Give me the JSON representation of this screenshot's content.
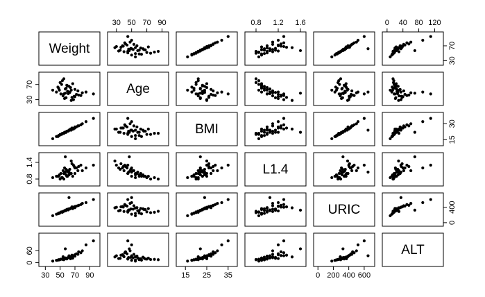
{
  "chart_data": {
    "type": "scatter_matrix",
    "variables": [
      {
        "name": "Weight",
        "lim": [
          25,
          100
        ],
        "xticks": [
          30,
          50,
          70,
          90
        ],
        "yticks": [
          30,
          70
        ]
      },
      {
        "name": "Age",
        "lim": [
          22,
          95
        ],
        "xticks": [
          30,
          50,
          70,
          90
        ],
        "yticks": [
          30,
          70
        ]
      },
      {
        "name": "BMI",
        "lim": [
          12,
          38
        ],
        "xticks": [
          15,
          25,
          35
        ],
        "yticks": [
          15,
          30
        ]
      },
      {
        "name": "L1.4",
        "lim": [
          0.65,
          1.65
        ],
        "xticks": [
          0.8,
          1.2,
          1.6
        ],
        "yticks": [
          0.8,
          1.4
        ]
      },
      {
        "name": "URIC",
        "lim": [
          -20,
          700
        ],
        "xticks": [
          0,
          200,
          400,
          600
        ],
        "yticks": [
          0,
          400
        ]
      },
      {
        "name": "ALT",
        "lim": [
          -5,
          135
        ],
        "xticks": [
          0,
          40,
          80,
          120
        ],
        "yticks": [
          0,
          60
        ]
      }
    ],
    "observations": [
      [
        55,
        45,
        21,
        1.0,
        300,
        20
      ],
      [
        60,
        52,
        23,
        1.1,
        350,
        25
      ],
      [
        48,
        60,
        19,
        0.9,
        250,
        15
      ],
      [
        70,
        38,
        26,
        1.2,
        420,
        40
      ],
      [
        65,
        55,
        24,
        1.0,
        380,
        30
      ],
      [
        52,
        70,
        20,
        0.85,
        280,
        18
      ],
      [
        75,
        42,
        28,
        1.25,
        450,
        55
      ],
      [
        58,
        35,
        22,
        1.15,
        320,
        22
      ],
      [
        62,
        65,
        24,
        0.95,
        360,
        28
      ],
      [
        45,
        50,
        18,
        0.9,
        220,
        12
      ],
      [
        80,
        48,
        30,
        1.1,
        500,
        60
      ],
      [
        68,
        30,
        25,
        1.3,
        400,
        35
      ],
      [
        50,
        75,
        20,
        0.8,
        260,
        16
      ],
      [
        57,
        58,
        22,
        1.05,
        310,
        24
      ],
      [
        72,
        44,
        27,
        1.2,
        430,
        45
      ],
      [
        64,
        62,
        25,
        1.0,
        370,
        20
      ],
      [
        54,
        40,
        21,
        1.1,
        290,
        30
      ],
      [
        59,
        68,
        23,
        0.9,
        340,
        19
      ],
      [
        66,
        36,
        26,
        1.35,
        410,
        38
      ],
      [
        49,
        55,
        19,
        0.95,
        240,
        14
      ],
      [
        85,
        50,
        32,
        1.2,
        520,
        90
      ],
      [
        61,
        46,
        23,
        1.05,
        330,
        26
      ],
      [
        53,
        80,
        21,
        0.85,
        270,
        17
      ],
      [
        70,
        57,
        27,
        1.0,
        390,
        33
      ],
      [
        56,
        33,
        22,
        1.2,
        305,
        21
      ],
      [
        63,
        49,
        24,
        1.15,
        355,
        27
      ],
      [
        47,
        63,
        18,
        0.9,
        230,
        13
      ],
      [
        78,
        41,
        29,
        1.3,
        470,
        50
      ],
      [
        67,
        72,
        25,
        0.9,
        365,
        23
      ],
      [
        51,
        45,
        20,
        1.0,
        275,
        18
      ],
      [
        74,
        53,
        28,
        1.1,
        440,
        42
      ],
      [
        58,
        60,
        22,
        0.95,
        315,
        20
      ],
      [
        69,
        39,
        26,
        1.25,
        405,
        36
      ],
      [
        60,
        66,
        23,
        0.9,
        345,
        24
      ],
      [
        95,
        45,
        35,
        1.3,
        600,
        110
      ],
      [
        40,
        55,
        16,
        0.85,
        180,
        8
      ],
      [
        55,
        85,
        21,
        0.8,
        295,
        15
      ],
      [
        65,
        28,
        25,
        1.45,
        385,
        29
      ],
      [
        62,
        50,
        24,
        1.05,
        650,
        35
      ],
      [
        57,
        47,
        22,
        1.6,
        325,
        70
      ]
    ]
  }
}
